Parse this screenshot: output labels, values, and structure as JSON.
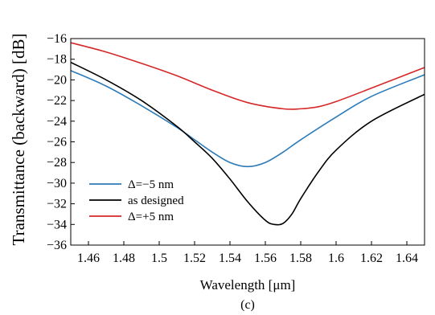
{
  "chart_data": {
    "type": "line",
    "xlabel": "Wavelength [μm]",
    "ylabel": "Transmittance (backward) [dB]",
    "caption": "(c)",
    "xlim": [
      1.45,
      1.65
    ],
    "ylim": [
      -36,
      -16
    ],
    "xticks": [
      1.46,
      1.48,
      1.5,
      1.52,
      1.54,
      1.56,
      1.58,
      1.6,
      1.62,
      1.64
    ],
    "xtick_labels": [
      "1.46",
      "1.48",
      "1.5",
      "1.52",
      "1.54",
      "1.56",
      "1.58",
      "1.6",
      "1.62",
      "1.64"
    ],
    "yticks": [
      -36,
      -34,
      -32,
      -30,
      -28,
      -26,
      -24,
      -22,
      -20,
      -18,
      -16
    ],
    "ytick_labels": [
      "−36",
      "−34",
      "−32",
      "−30",
      "−28",
      "−26",
      "−24",
      "−22",
      "−20",
      "−18",
      "−16"
    ],
    "grid": false,
    "legend_position": "bottom-left",
    "series": [
      {
        "name": "Δ=−5 nm",
        "color": "#2b7bb9",
        "x": [
          1.45,
          1.47,
          1.49,
          1.51,
          1.52,
          1.53,
          1.54,
          1.55,
          1.56,
          1.57,
          1.58,
          1.6,
          1.62,
          1.65
        ],
        "y": [
          -19.1,
          -20.6,
          -22.5,
          -24.6,
          -25.8,
          -27.0,
          -28.0,
          -28.4,
          -28.0,
          -27.0,
          -25.8,
          -23.6,
          -21.6,
          -19.5
        ]
      },
      {
        "name": "as designed",
        "color": "#000000",
        "x": [
          1.45,
          1.47,
          1.49,
          1.51,
          1.52,
          1.53,
          1.54,
          1.55,
          1.56,
          1.565,
          1.57,
          1.575,
          1.58,
          1.59,
          1.6,
          1.62,
          1.65
        ],
        "y": [
          -18.3,
          -20.0,
          -22.0,
          -24.5,
          -26.0,
          -27.6,
          -29.6,
          -31.8,
          -33.6,
          -34.0,
          -33.9,
          -33.0,
          -31.5,
          -28.9,
          -26.8,
          -24.0,
          -21.4
        ]
      },
      {
        "name": "Δ=+5 nm",
        "color": "#d62728",
        "x": [
          1.45,
          1.47,
          1.49,
          1.51,
          1.53,
          1.55,
          1.57,
          1.58,
          1.59,
          1.6,
          1.62,
          1.65
        ],
        "y": [
          -16.4,
          -17.3,
          -18.4,
          -19.6,
          -21.0,
          -22.2,
          -22.8,
          -22.8,
          -22.6,
          -22.1,
          -20.8,
          -18.8
        ]
      }
    ]
  }
}
